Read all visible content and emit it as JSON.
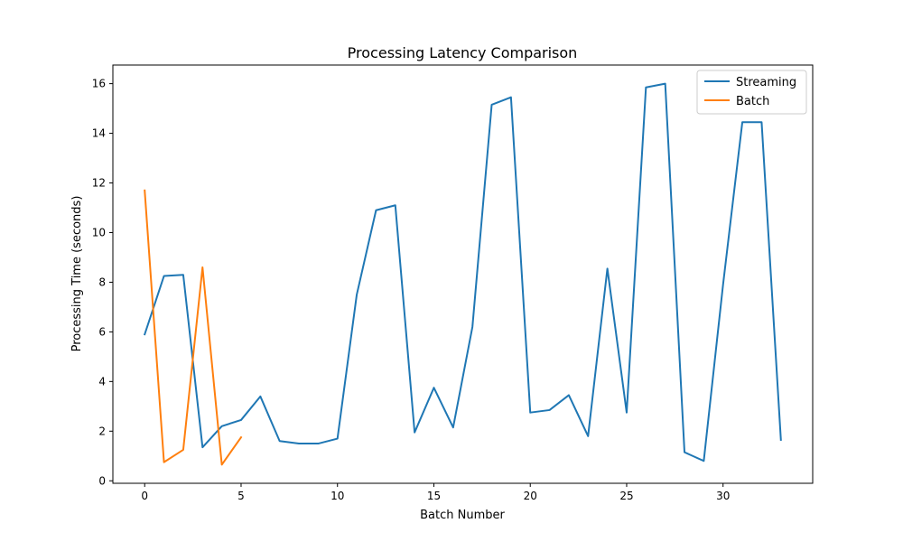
{
  "chart_data": {
    "type": "line",
    "title": "Processing Latency Comparison",
    "xlabel": "Batch Number",
    "ylabel": "Processing Time (seconds)",
    "xlim": [
      -1.65,
      34.65
    ],
    "ylim": [
      -0.1,
      16.75
    ],
    "xticks": [
      0,
      5,
      10,
      15,
      20,
      25,
      30
    ],
    "yticks": [
      0,
      2,
      4,
      6,
      8,
      10,
      12,
      14,
      16
    ],
    "grid": false,
    "legend_position": "top-right",
    "series": [
      {
        "name": "Streaming",
        "color": "#1f77b4",
        "x": [
          0,
          1,
          2,
          3,
          4,
          5,
          6,
          7,
          8,
          9,
          10,
          11,
          12,
          13,
          14,
          15,
          16,
          17,
          18,
          19,
          20,
          21,
          22,
          23,
          24,
          25,
          26,
          27,
          28,
          29,
          30,
          31,
          32,
          33
        ],
        "y": [
          5.9,
          8.25,
          8.3,
          1.35,
          2.2,
          2.45,
          3.4,
          1.6,
          1.5,
          1.5,
          1.7,
          7.5,
          10.9,
          11.1,
          1.95,
          3.75,
          2.15,
          6.2,
          15.15,
          15.45,
          2.75,
          2.85,
          3.45,
          1.8,
          8.55,
          2.75,
          15.85,
          16.0,
          1.15,
          0.8,
          7.9,
          14.45,
          14.45,
          1.65
        ]
      },
      {
        "name": "Batch",
        "color": "#ff7f0e",
        "x": [
          0,
          1,
          2,
          3,
          4,
          5
        ],
        "y": [
          11.7,
          0.75,
          1.25,
          8.6,
          0.65,
          1.75
        ]
      }
    ]
  }
}
